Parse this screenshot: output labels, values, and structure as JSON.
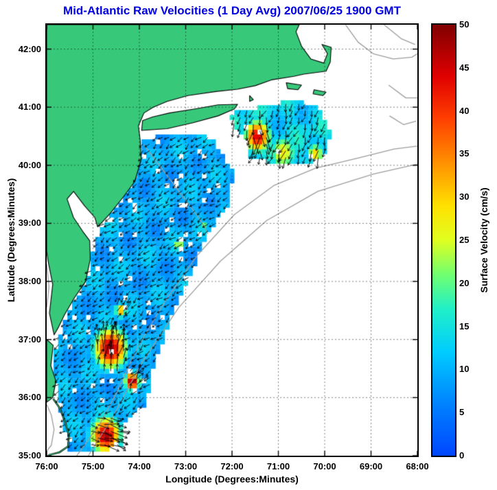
{
  "page": {
    "background": "#ffffff"
  },
  "chart_data": {
    "type": "heatmap",
    "subtype": "geographic-surface-velocity-field-with-vectors",
    "title": "Mid-Atlantic Raw Velocities (1 Day Avg) 2007/06/25 1900 GMT",
    "xlabel": "Longitude (Degrees:Minutes)",
    "ylabel": "Latitude (Degrees:Minutes)",
    "xlim": [
      -76,
      -68
    ],
    "ylim": [
      35,
      42.42
    ],
    "grid": true,
    "x_ticks": [
      {
        "v": -76,
        "label": "76:00"
      },
      {
        "v": -75,
        "label": "75:00"
      },
      {
        "v": -74,
        "label": "74:00"
      },
      {
        "v": -73,
        "label": "73:00"
      },
      {
        "v": -72,
        "label": "72:00"
      },
      {
        "v": -71,
        "label": "71:00"
      },
      {
        "v": -70,
        "label": "70:00"
      },
      {
        "v": -69,
        "label": "69:00"
      },
      {
        "v": -68,
        "label": "68:00"
      }
    ],
    "y_ticks": [
      {
        "v": 35,
        "label": "35:00"
      },
      {
        "v": 36,
        "label": "36:00"
      },
      {
        "v": 37,
        "label": "37:00"
      },
      {
        "v": 38,
        "label": "38:00"
      },
      {
        "v": 39,
        "label": "39:00"
      },
      {
        "v": 40,
        "label": "40:00"
      },
      {
        "v": 41,
        "label": "41:00"
      },
      {
        "v": 42,
        "label": "42:00"
      }
    ],
    "colorbar": {
      "label": "Surface Velocity (cm/s)",
      "min": 0,
      "max": 50,
      "ticks": [
        0,
        5,
        10,
        15,
        20,
        25,
        30,
        35,
        40,
        45,
        50
      ]
    },
    "colormap_stops": [
      [
        0.0,
        "#0046ff"
      ],
      [
        0.12,
        "#0082ff"
      ],
      [
        0.24,
        "#00ccff"
      ],
      [
        0.34,
        "#20f0c8"
      ],
      [
        0.42,
        "#70ff70"
      ],
      [
        0.5,
        "#e0ff20"
      ],
      [
        0.58,
        "#ffe000"
      ],
      [
        0.68,
        "#ff9000"
      ],
      [
        0.78,
        "#ff4000"
      ],
      [
        0.88,
        "#e00000"
      ],
      [
        1.0,
        "#800000"
      ]
    ],
    "colors": {
      "title": "#0000e0",
      "land": "#38c87a",
      "coast": "#000000",
      "contour": "#9c9c9c",
      "grid": "rgba(0,0,0,0.5)",
      "arrow": "#000000"
    },
    "land_polygons": [
      {
        "name": "mainland-northeast-us",
        "pts": [
          [
            -76.0,
            42.42
          ],
          [
            -70.55,
            42.42
          ],
          [
            -70.62,
            42.3
          ],
          [
            -70.5,
            42.05
          ],
          [
            -70.3,
            41.83
          ],
          [
            -70.02,
            41.76
          ],
          [
            -69.94,
            41.92
          ],
          [
            -70.06,
            42.08
          ],
          [
            -69.86,
            42.03
          ],
          [
            -69.88,
            41.78
          ],
          [
            -69.97,
            41.62
          ],
          [
            -70.45,
            41.57
          ],
          [
            -70.67,
            41.53
          ],
          [
            -71.15,
            41.47
          ],
          [
            -71.5,
            41.37
          ],
          [
            -71.88,
            41.31
          ],
          [
            -72.35,
            41.27
          ],
          [
            -72.95,
            41.2
          ],
          [
            -73.4,
            41.1
          ],
          [
            -73.7,
            41.0
          ],
          [
            -73.9,
            40.9
          ],
          [
            -74.02,
            40.68
          ],
          [
            -73.98,
            40.42
          ],
          [
            -73.96,
            40.1
          ],
          [
            -74.1,
            39.72
          ],
          [
            -74.34,
            39.46
          ],
          [
            -74.64,
            39.16
          ],
          [
            -74.9,
            38.94
          ],
          [
            -74.96,
            39.1
          ],
          [
            -75.18,
            39.3
          ],
          [
            -75.42,
            39.55
          ],
          [
            -75.56,
            39.42
          ],
          [
            -75.42,
            39.1
          ],
          [
            -75.22,
            38.86
          ],
          [
            -75.07,
            38.7
          ],
          [
            -75.06,
            38.38
          ],
          [
            -75.16,
            38.0
          ],
          [
            -75.4,
            37.72
          ],
          [
            -75.62,
            37.42
          ],
          [
            -75.74,
            37.22
          ],
          [
            -75.84,
            37.08
          ],
          [
            -75.94,
            37.45
          ],
          [
            -75.87,
            37.95
          ],
          [
            -75.97,
            38.35
          ],
          [
            -76.0,
            38.52
          ]
        ]
      },
      {
        "name": "virginia-carolina-coast",
        "pts": [
          [
            -76.0,
            37.0
          ],
          [
            -75.86,
            36.9
          ],
          [
            -75.91,
            36.55
          ],
          [
            -75.8,
            36.28
          ],
          [
            -75.87,
            36.0
          ],
          [
            -76.0,
            35.92
          ]
        ]
      },
      {
        "name": "long-island",
        "pts": [
          [
            -73.95,
            40.6
          ],
          [
            -73.4,
            40.63
          ],
          [
            -72.85,
            40.73
          ],
          [
            -72.3,
            40.85
          ],
          [
            -71.95,
            40.97
          ],
          [
            -71.88,
            41.05
          ],
          [
            -72.3,
            41.04
          ],
          [
            -72.8,
            40.97
          ],
          [
            -73.35,
            40.9
          ],
          [
            -73.72,
            40.83
          ],
          [
            -73.93,
            40.77
          ]
        ]
      },
      {
        "name": "marthas-vineyard",
        "pts": [
          [
            -70.83,
            41.42
          ],
          [
            -70.5,
            41.38
          ],
          [
            -70.58,
            41.3
          ],
          [
            -70.8,
            41.32
          ]
        ]
      },
      {
        "name": "nantucket-island",
        "pts": [
          [
            -70.23,
            41.3
          ],
          [
            -69.97,
            41.26
          ],
          [
            -70.04,
            41.2
          ],
          [
            -70.25,
            41.23
          ]
        ]
      },
      {
        "name": "block-island",
        "pts": [
          [
            -71.62,
            41.2
          ],
          [
            -71.54,
            41.13
          ],
          [
            -71.62,
            41.1
          ]
        ]
      }
    ],
    "outer_banks": [
      [
        -75.86,
        35.98
      ],
      [
        -75.72,
        35.82
      ],
      [
        -75.6,
        35.58
      ],
      [
        -75.52,
        35.34
      ],
      [
        -75.54,
        35.16
      ],
      [
        -75.72,
        35.06
      ],
      [
        -75.96,
        35.01
      ]
    ],
    "contours": [
      [
        [
          -75.35,
          35.0
        ],
        [
          -74.85,
          35.55
        ],
        [
          -74.45,
          36.15
        ],
        [
          -74.05,
          36.85
        ],
        [
          -73.45,
          37.65
        ],
        [
          -72.75,
          38.45
        ],
        [
          -71.95,
          39.15
        ],
        [
          -71.1,
          39.65
        ],
        [
          -70.2,
          39.95
        ],
        [
          -69.3,
          40.12
        ],
        [
          -68.5,
          40.28
        ],
        [
          -68.0,
          40.33
        ]
      ],
      [
        [
          -75.1,
          35.0
        ],
        [
          -74.55,
          35.7
        ],
        [
          -73.95,
          36.6
        ],
        [
          -73.15,
          37.55
        ],
        [
          -72.25,
          38.35
        ],
        [
          -71.25,
          39.05
        ],
        [
          -70.15,
          39.55
        ],
        [
          -68.95,
          39.85
        ],
        [
          -68.0,
          40.02
        ]
      ],
      [
        [
          -73.9,
          40.35
        ],
        [
          -73.55,
          39.98
        ],
        [
          -73.1,
          39.5
        ],
        [
          -72.7,
          39.08
        ],
        [
          -72.52,
          38.82
        ]
      ],
      [
        [
          -69.55,
          42.42
        ],
        [
          -69.28,
          42.12
        ],
        [
          -68.95,
          41.92
        ],
        [
          -68.52,
          41.83
        ],
        [
          -68.12,
          41.86
        ],
        [
          -68.0,
          41.92
        ]
      ],
      [
        [
          -68.72,
          42.42
        ],
        [
          -68.35,
          42.18
        ],
        [
          -68.05,
          42.08
        ]
      ],
      [
        [
          -68.62,
          41.38
        ],
        [
          -68.25,
          41.16
        ],
        [
          -68.0,
          41.16
        ]
      ],
      [
        [
          -68.6,
          40.85
        ],
        [
          -68.3,
          40.7
        ],
        [
          -68.02,
          40.76
        ]
      ],
      [
        [
          -76.0,
          35.88
        ],
        [
          -75.9,
          35.7
        ],
        [
          -75.84,
          35.45
        ],
        [
          -75.9,
          35.18
        ],
        [
          -76.0,
          35.08
        ]
      ],
      [
        [
          -76.0,
          38.3
        ],
        [
          -75.95,
          37.9
        ],
        [
          -76.0,
          37.55
        ]
      ]
    ],
    "velocity_regions": [
      {
        "name": "mid-atlantic-shelf",
        "typical_cms": 9.5,
        "noise_amp": 3.5,
        "flow_dir_deg": 220,
        "polygon": [
          [
            -75.5,
            35.08
          ],
          [
            -74.4,
            35.12
          ],
          [
            -74.3,
            35.6
          ],
          [
            -73.85,
            35.9
          ],
          [
            -73.7,
            36.5
          ],
          [
            -73.35,
            37.3
          ],
          [
            -72.85,
            38.2
          ],
          [
            -72.5,
            38.85
          ],
          [
            -72.1,
            39.3
          ],
          [
            -71.95,
            39.85
          ],
          [
            -72.2,
            40.18
          ],
          [
            -72.45,
            40.48
          ],
          [
            -73.0,
            40.52
          ],
          [
            -73.6,
            40.5
          ],
          [
            -73.95,
            40.45
          ],
          [
            -74.0,
            40.2
          ],
          [
            -74.02,
            39.9
          ],
          [
            -74.2,
            39.6
          ],
          [
            -74.5,
            39.25
          ],
          [
            -74.85,
            38.9
          ],
          [
            -75.0,
            38.55
          ],
          [
            -75.05,
            38.2
          ],
          [
            -75.3,
            37.8
          ],
          [
            -75.6,
            37.35
          ],
          [
            -75.78,
            36.95
          ],
          [
            -75.85,
            36.5
          ],
          [
            -75.75,
            35.95
          ],
          [
            -75.6,
            35.4
          ],
          [
            -75.55,
            35.1
          ]
        ]
      },
      {
        "name": "nantucket-shoals",
        "typical_cms": 13,
        "noise_amp": 4,
        "flow_dir_deg": 250,
        "polygon": [
          [
            -72.1,
            40.82
          ],
          [
            -71.7,
            40.45
          ],
          [
            -71.6,
            40.12
          ],
          [
            -71.0,
            40.02
          ],
          [
            -70.35,
            40.05
          ],
          [
            -69.95,
            40.18
          ],
          [
            -69.88,
            40.6
          ],
          [
            -70.15,
            41.02
          ],
          [
            -70.7,
            41.12
          ],
          [
            -71.35,
            41.0
          ],
          [
            -71.9,
            40.95
          ]
        ]
      }
    ],
    "hotspots": [
      {
        "name": "chesapeake-mouth-jet",
        "lon": -74.62,
        "lat": 36.85,
        "radius_deg": 0.38,
        "peak_cms": 49,
        "dir_deg": 80
      },
      {
        "name": "virginia-inner-jet",
        "lon": -74.15,
        "lat": 36.28,
        "radius_deg": 0.17,
        "peak_cms": 50,
        "dir_deg": 60
      },
      {
        "name": "hatteras-jet",
        "lon": -74.72,
        "lat": 35.35,
        "radius_deg": 0.35,
        "peak_cms": 48,
        "dir_deg": -12
      },
      {
        "name": "delmarva-spot",
        "lon": -74.4,
        "lat": 37.5,
        "radius_deg": 0.14,
        "peak_cms": 33,
        "dir_deg": 50
      },
      {
        "name": "mid-shelf-spot-a",
        "lon": -73.15,
        "lat": 38.63,
        "radius_deg": 0.12,
        "peak_cms": 27,
        "dir_deg": 230
      },
      {
        "name": "mid-shelf-spot-b",
        "lon": -72.6,
        "lat": 38.95,
        "radius_deg": 0.09,
        "peak_cms": 22,
        "dir_deg": 230
      },
      {
        "name": "nantucket-shoals-jet",
        "lon": -71.45,
        "lat": 40.5,
        "radius_deg": 0.3,
        "peak_cms": 45,
        "dir_deg": -95
      },
      {
        "name": "shoals-south-band",
        "lon": -70.9,
        "lat": 40.22,
        "radius_deg": 0.33,
        "peak_cms": 28,
        "dir_deg": -110
      },
      {
        "name": "montauk-spot",
        "lon": -71.98,
        "lat": 40.72,
        "radius_deg": 0.12,
        "peak_cms": 30,
        "dir_deg": -100
      },
      {
        "name": "shoals-se-spot",
        "lon": -70.2,
        "lat": 40.2,
        "radius_deg": 0.2,
        "peak_cms": 30,
        "dir_deg": -120
      }
    ]
  }
}
